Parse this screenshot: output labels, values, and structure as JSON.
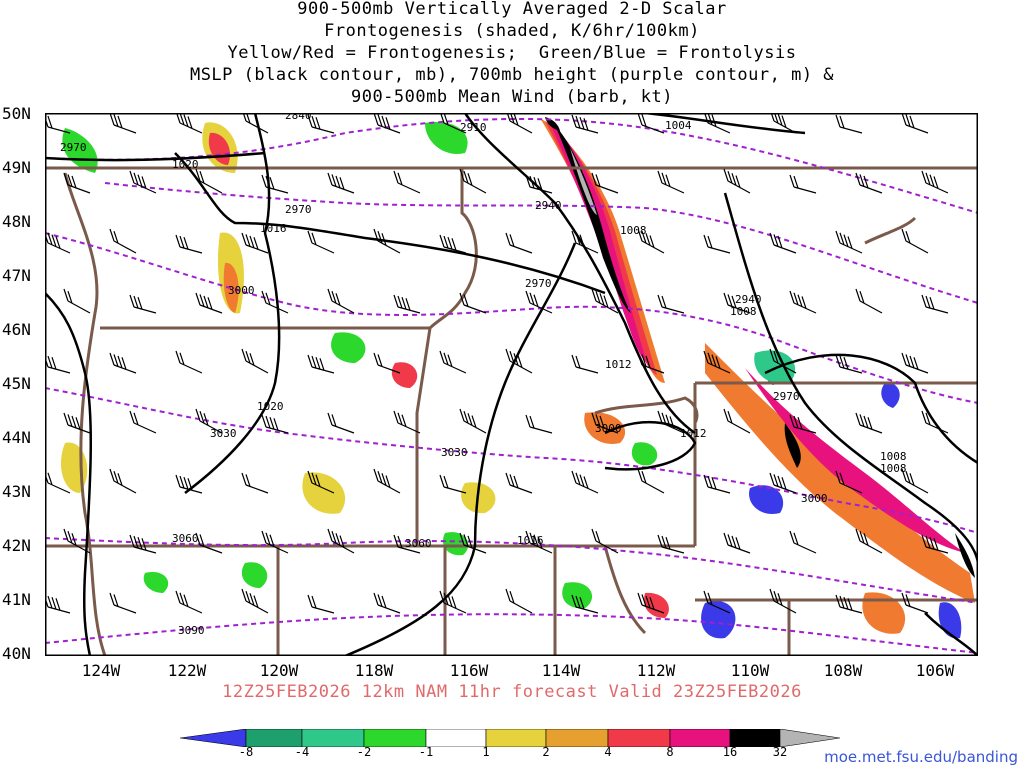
{
  "title": {
    "line1": "900-500mb Vertically Averaged 2-D Scalar",
    "line2": "Frontogenesis (shaded, K/6hr/100km)",
    "line3": "Yellow/Red = Frontogenesis;  Green/Blue = Frontolysis",
    "line4": "MSLP (black contour, mb), 700mb height (purple contour, m) &",
    "line5": "900-500mb Mean Wind (barb, kt)"
  },
  "lat_labels": [
    "50N",
    "49N",
    "48N",
    "47N",
    "46N",
    "45N",
    "44N",
    "43N",
    "42N",
    "41N",
    "40N"
  ],
  "lon_labels": [
    "124W",
    "122W",
    "120W",
    "118W",
    "116W",
    "114W",
    "112W",
    "110W",
    "108W",
    "106W"
  ],
  "footer": "12Z25FEB2026 12km NAM 11hr forecast Valid 23Z25FEB2026",
  "url": "moe.met.fsu.edu/banding",
  "colorbar": {
    "labels": [
      "-8",
      "-4",
      "-2",
      "-1",
      "1",
      "2",
      "4",
      "8",
      "16",
      "32"
    ],
    "colors": [
      "#3a3ae8",
      "#1ea06e",
      "#2ec88a",
      "#3cd060",
      "#2cd82c",
      "#ffffff",
      "#e6d23c",
      "#e6a030",
      "#f07a30",
      "#f03a4a",
      "#e8127e",
      "#000000",
      "#b4b4b4"
    ]
  },
  "colors": {
    "mslp": "#000000",
    "height": "#a020d0",
    "borders": "#7a5a4a",
    "frontogenesis_strong": "#e8127e"
  },
  "mslp_labels": [
    "1004",
    "1008",
    "1008",
    "1008",
    "1008",
    "1012",
    "1012",
    "1016",
    "1016",
    "1020",
    "1020"
  ],
  "height_labels": [
    "2840",
    "2910",
    "2940",
    "2940",
    "2970",
    "2970",
    "2970",
    "2970",
    "3000",
    "3000",
    "3000",
    "3030",
    "3030",
    "3060",
    "3060",
    "3090"
  ],
  "icons": {
    "barb": "wind-barb-icon"
  }
}
